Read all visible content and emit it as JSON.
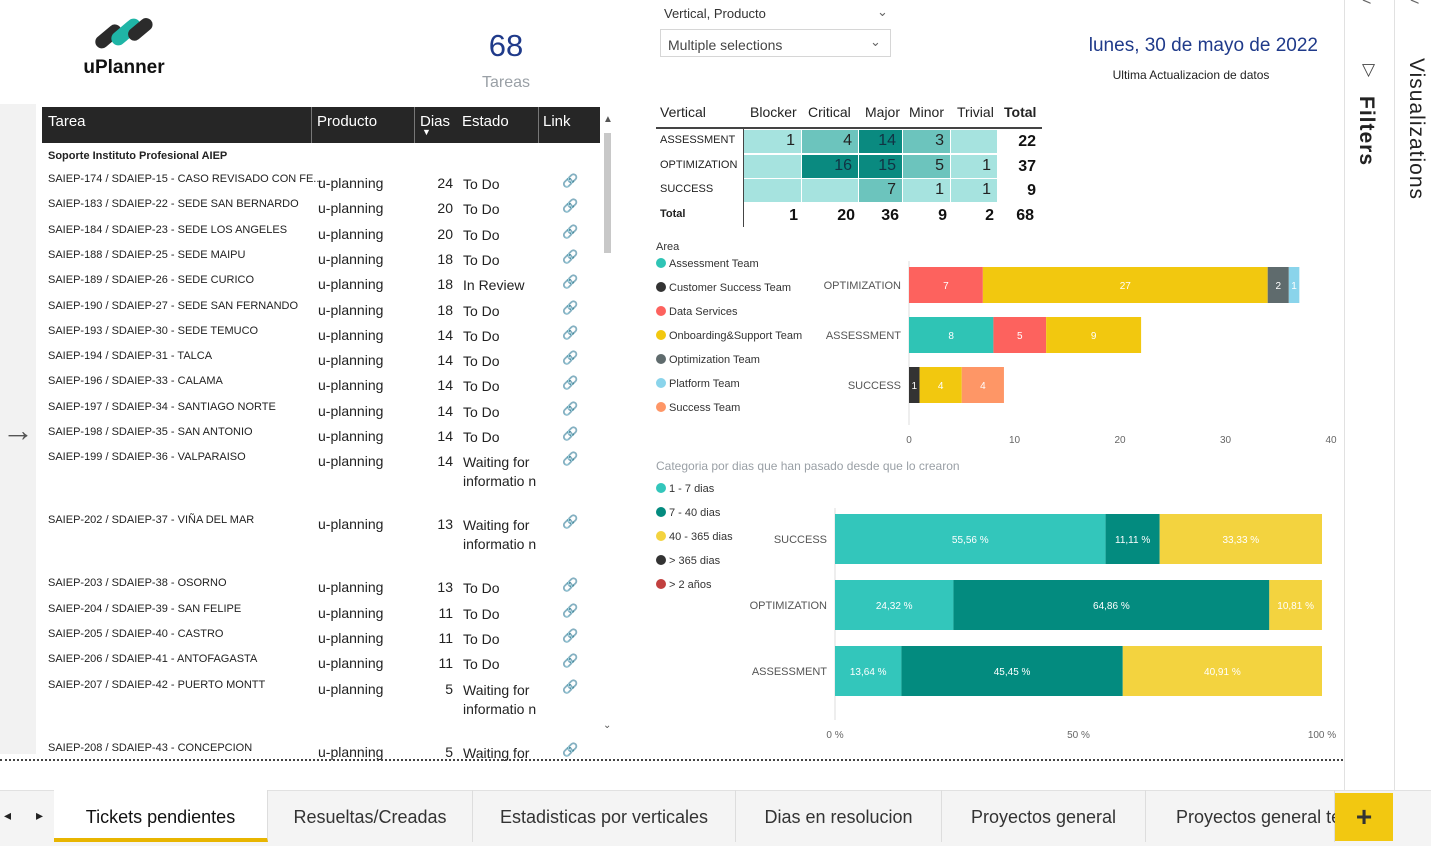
{
  "logo": {
    "text": "uPlanner"
  },
  "kpi": {
    "value": "68",
    "label": "Tareas"
  },
  "slicer": {
    "title": "Vertical, Producto",
    "value": "Multiple selections"
  },
  "date": {
    "text": "lunes, 30 de mayo de 2022",
    "subtitle": "Ultima Actualizacion de datos"
  },
  "table": {
    "headers": {
      "tarea": "Tarea",
      "producto": "Producto",
      "dias": "Dias",
      "estado": "Estado",
      "link": "Link"
    },
    "group": "Soporte Instituto Profesional AIEP",
    "rows": [
      {
        "tarea": "SAIEP-174 / SDAIEP-15 - CASO REVISADO CON FE...",
        "producto": "u-planning",
        "dias": "24",
        "estado": "To Do"
      },
      {
        "tarea": "SAIEP-183 / SDAIEP-22 - SEDE SAN BERNARDO",
        "producto": "u-planning",
        "dias": "20",
        "estado": "To Do"
      },
      {
        "tarea": "SAIEP-184 / SDAIEP-23 - SEDE LOS ANGELES",
        "producto": "u-planning",
        "dias": "20",
        "estado": "To Do"
      },
      {
        "tarea": "SAIEP-188 / SDAIEP-25 - SEDE MAIPU",
        "producto": "u-planning",
        "dias": "18",
        "estado": "To Do"
      },
      {
        "tarea": "SAIEP-189 / SDAIEP-26 - SEDE CURICO",
        "producto": "u-planning",
        "dias": "18",
        "estado": "In Review"
      },
      {
        "tarea": "SAIEP-190 / SDAIEP-27 - SEDE SAN FERNANDO",
        "producto": "u-planning",
        "dias": "18",
        "estado": "To Do"
      },
      {
        "tarea": "SAIEP-193 / SDAIEP-30 - SEDE TEMUCO",
        "producto": "u-planning",
        "dias": "14",
        "estado": "To Do"
      },
      {
        "tarea": "SAIEP-194 / SDAIEP-31 - TALCA",
        "producto": "u-planning",
        "dias": "14",
        "estado": "To Do"
      },
      {
        "tarea": "SAIEP-196 / SDAIEP-33 - CALAMA",
        "producto": "u-planning",
        "dias": "14",
        "estado": "To Do"
      },
      {
        "tarea": "SAIEP-197 / SDAIEP-34 - SANTIAGO NORTE",
        "producto": "u-planning",
        "dias": "14",
        "estado": "To Do"
      },
      {
        "tarea": "SAIEP-198 / SDAIEP-35 - SAN ANTONIO",
        "producto": "u-planning",
        "dias": "14",
        "estado": "To Do"
      },
      {
        "tarea": "SAIEP-199 / SDAIEP-36 - VALPARAISO",
        "producto": "u-planning",
        "dias": "14",
        "estado": "Waiting for informatio n"
      },
      {
        "tarea": "SAIEP-202 / SDAIEP-37 - VIÑA DEL MAR",
        "producto": "u-planning",
        "dias": "13",
        "estado": "Waiting for informatio n"
      },
      {
        "tarea": "SAIEP-203 / SDAIEP-38 - OSORNO",
        "producto": "u-planning",
        "dias": "13",
        "estado": "To Do"
      },
      {
        "tarea": "SAIEP-204 / SDAIEP-39 - SAN FELIPE",
        "producto": "u-planning",
        "dias": "11",
        "estado": "To Do"
      },
      {
        "tarea": "SAIEP-205 / SDAIEP-40 - CASTRO",
        "producto": "u-planning",
        "dias": "11",
        "estado": "To Do"
      },
      {
        "tarea": "SAIEP-206 / SDAIEP-41 - ANTOFAGASTA",
        "producto": "u-planning",
        "dias": "11",
        "estado": "To Do"
      },
      {
        "tarea": "SAIEP-207 / SDAIEP-42 - PUERTO MONTT",
        "producto": "u-planning",
        "dias": "5",
        "estado": "Waiting for informatio n"
      },
      {
        "tarea": "SAIEP-208 / SDAIEP-43 - CONCEPCION",
        "producto": "u-planning",
        "dias": "5",
        "estado": "Waiting for"
      }
    ]
  },
  "matrix": {
    "headers": [
      "Vertical",
      "Blocker",
      "Critical",
      "Major",
      "Minor",
      "Trivial",
      "Total"
    ],
    "rows": [
      {
        "label": "ASSESSMENT",
        "values": [
          "1",
          "4",
          "14",
          "3",
          ""
        ],
        "total": "22"
      },
      {
        "label": "OPTIMIZATION",
        "values": [
          "",
          "16",
          "15",
          "5",
          "1"
        ],
        "total": "37"
      },
      {
        "label": "SUCCESS",
        "values": [
          "",
          "",
          "7",
          "1",
          "1"
        ],
        "total": "9"
      }
    ],
    "totals": {
      "label": "Total",
      "values": [
        "1",
        "20",
        "36",
        "9",
        "2"
      ],
      "total": "68"
    }
  },
  "chart_data": [
    {
      "type": "bar",
      "orientation": "horizontal",
      "stacked": true,
      "legend_title": "Area",
      "categories": [
        "OPTIMIZATION",
        "ASSESSMENT",
        "SUCCESS"
      ],
      "series": [
        {
          "name": "Assessment Team",
          "color": "#2fc4b5",
          "values": [
            0,
            8,
            0
          ]
        },
        {
          "name": "Customer Success Team",
          "color": "#333333",
          "values": [
            0,
            0,
            1
          ]
        },
        {
          "name": "Data Services",
          "color": "#fd625e",
          "values": [
            7,
            5,
            0
          ]
        },
        {
          "name": "Onboarding&Support Team",
          "color": "#f2c80f",
          "values": [
            27,
            9,
            4
          ]
        },
        {
          "name": "Optimization Team",
          "color": "#5f6b6d",
          "values": [
            2,
            0,
            0
          ]
        },
        {
          "name": "Platform Team",
          "color": "#8ad4eb",
          "values": [
            1,
            0,
            0
          ]
        },
        {
          "name": "Success Team",
          "color": "#fe9666",
          "values": [
            0,
            0,
            4
          ]
        }
      ],
      "xticks": [
        "0",
        "10",
        "20",
        "30",
        "40"
      ],
      "xlim": [
        0,
        40
      ],
      "grid": false,
      "legend_position": "left"
    },
    {
      "type": "bar",
      "orientation": "horizontal",
      "stacked": true,
      "percent": true,
      "title": "Categoria por dias que han pasado desde que lo crearon",
      "categories": [
        "SUCCESS",
        "OPTIMIZATION",
        "ASSESSMENT"
      ],
      "series": [
        {
          "name": "1 - 7 dias",
          "color": "#33c6bb",
          "values": [
            55.56,
            24.32,
            13.64
          ],
          "labels": [
            "55,56 %",
            "24,32 %",
            "13,64 %"
          ]
        },
        {
          "name": "7 - 40 dias",
          "color": "#038b7f",
          "values": [
            11.11,
            64.86,
            45.45
          ],
          "labels": [
            "11,11 %",
            "64,86 %",
            "45,45 %"
          ]
        },
        {
          "name": "40 - 365 dias",
          "color": "#f3d33f",
          "values": [
            33.33,
            10.81,
            40.91
          ],
          "labels": [
            "33,33 %",
            "10,81 %",
            "40,91 %"
          ]
        },
        {
          "name": "> 365 dias",
          "color": "#333333",
          "values": [
            0,
            0,
            0
          ],
          "labels": [
            "",
            "",
            ""
          ]
        },
        {
          "name": "> 2 años",
          "color": "#c2403f",
          "values": [
            0,
            0,
            0
          ],
          "labels": [
            "",
            "",
            ""
          ]
        }
      ],
      "xticks": [
        "0 %",
        "50 %",
        "100 %"
      ],
      "xlim": [
        0,
        100
      ],
      "grid": false,
      "legend_position": "left"
    }
  ],
  "tabs": [
    "Tickets pendientes",
    "Resueltas/Creadas",
    "Estadisticas por verticales",
    "Dias en resolucion",
    "Proyectos general",
    "Proyectos general te"
  ],
  "panes": {
    "filters": "Filters",
    "visualizations": "Visualizations"
  },
  "add_tab": "+"
}
